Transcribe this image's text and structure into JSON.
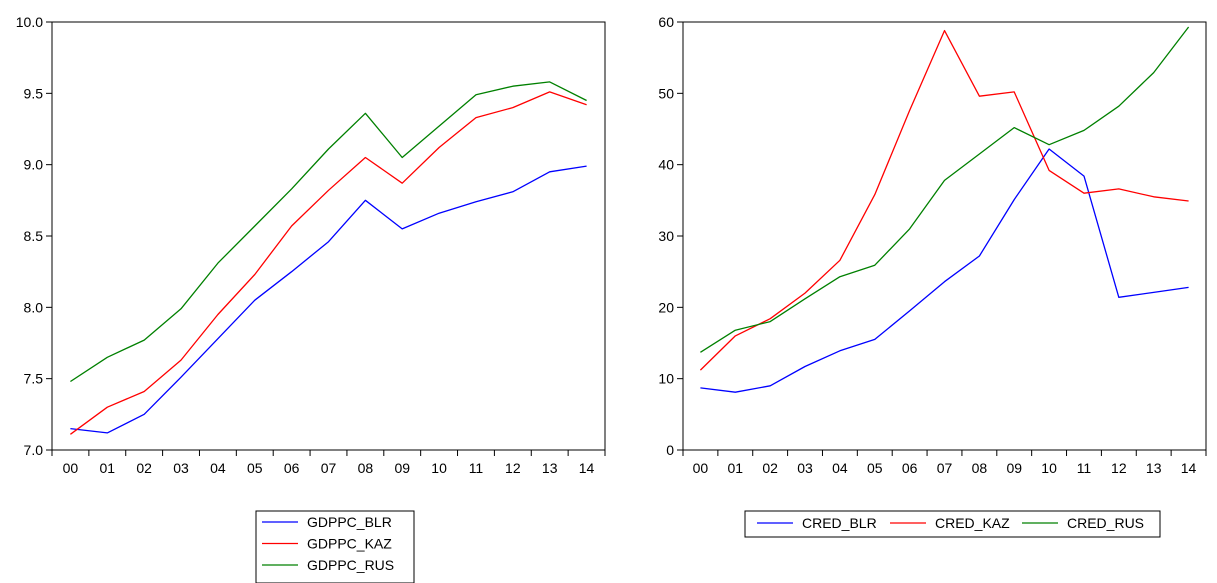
{
  "chart_data": [
    {
      "type": "line",
      "title": "",
      "xlabel": "",
      "ylabel": "",
      "x": [
        "00",
        "01",
        "02",
        "03",
        "04",
        "05",
        "06",
        "07",
        "08",
        "09",
        "10",
        "11",
        "12",
        "13",
        "14"
      ],
      "ylim": [
        7.0,
        10.0
      ],
      "yticks": [
        "7.0",
        "7.5",
        "8.0",
        "8.5",
        "9.0",
        "9.5",
        "10.0"
      ],
      "grid": false,
      "legend_position": "bottom-center",
      "legend_layout": "vertical",
      "series": [
        {
          "name": "GDPPC_BLR",
          "color": "#0000ff",
          "values": [
            7.15,
            7.12,
            7.25,
            7.51,
            7.78,
            8.05,
            8.25,
            8.46,
            8.75,
            8.55,
            8.66,
            8.74,
            8.81,
            8.95,
            8.99
          ]
        },
        {
          "name": "GDPPC_KAZ",
          "color": "#ff0000",
          "values": [
            7.11,
            7.3,
            7.41,
            7.63,
            7.95,
            8.23,
            8.57,
            8.82,
            9.05,
            8.87,
            9.12,
            9.33,
            9.4,
            9.51,
            9.42
          ]
        },
        {
          "name": "GDPPC_RUS",
          "color": "#008000",
          "values": [
            7.48,
            7.65,
            7.77,
            7.99,
            8.31,
            8.57,
            8.83,
            9.11,
            9.36,
            9.05,
            9.27,
            9.49,
            9.55,
            9.58,
            9.45
          ]
        }
      ]
    },
    {
      "type": "line",
      "title": "",
      "xlabel": "",
      "ylabel": "",
      "x": [
        "00",
        "01",
        "02",
        "03",
        "04",
        "05",
        "06",
        "07",
        "08",
        "09",
        "10",
        "11",
        "12",
        "13",
        "14"
      ],
      "ylim": [
        0,
        60
      ],
      "yticks": [
        "0",
        "10",
        "20",
        "30",
        "40",
        "50",
        "60"
      ],
      "grid": false,
      "legend_position": "bottom-center",
      "legend_layout": "horizontal",
      "series": [
        {
          "name": "CRED_BLR",
          "color": "#0000ff",
          "values": [
            8.7,
            8.1,
            9.0,
            11.7,
            13.9,
            15.5,
            19.5,
            23.6,
            27.2,
            35.1,
            42.2,
            38.4,
            21.4,
            22.1,
            22.8
          ]
        },
        {
          "name": "CRED_KAZ",
          "color": "#ff0000",
          "values": [
            11.2,
            16.0,
            18.4,
            22.0,
            26.6,
            35.8,
            47.6,
            58.8,
            49.6,
            50.2,
            39.2,
            36.0,
            36.6,
            35.5,
            34.9
          ]
        },
        {
          "name": "CRED_RUS",
          "color": "#008000",
          "values": [
            13.7,
            16.8,
            18.0,
            21.2,
            24.3,
            25.9,
            31.0,
            37.8,
            41.5,
            45.2,
            42.8,
            44.8,
            48.2,
            52.9,
            59.3
          ]
        }
      ]
    }
  ]
}
